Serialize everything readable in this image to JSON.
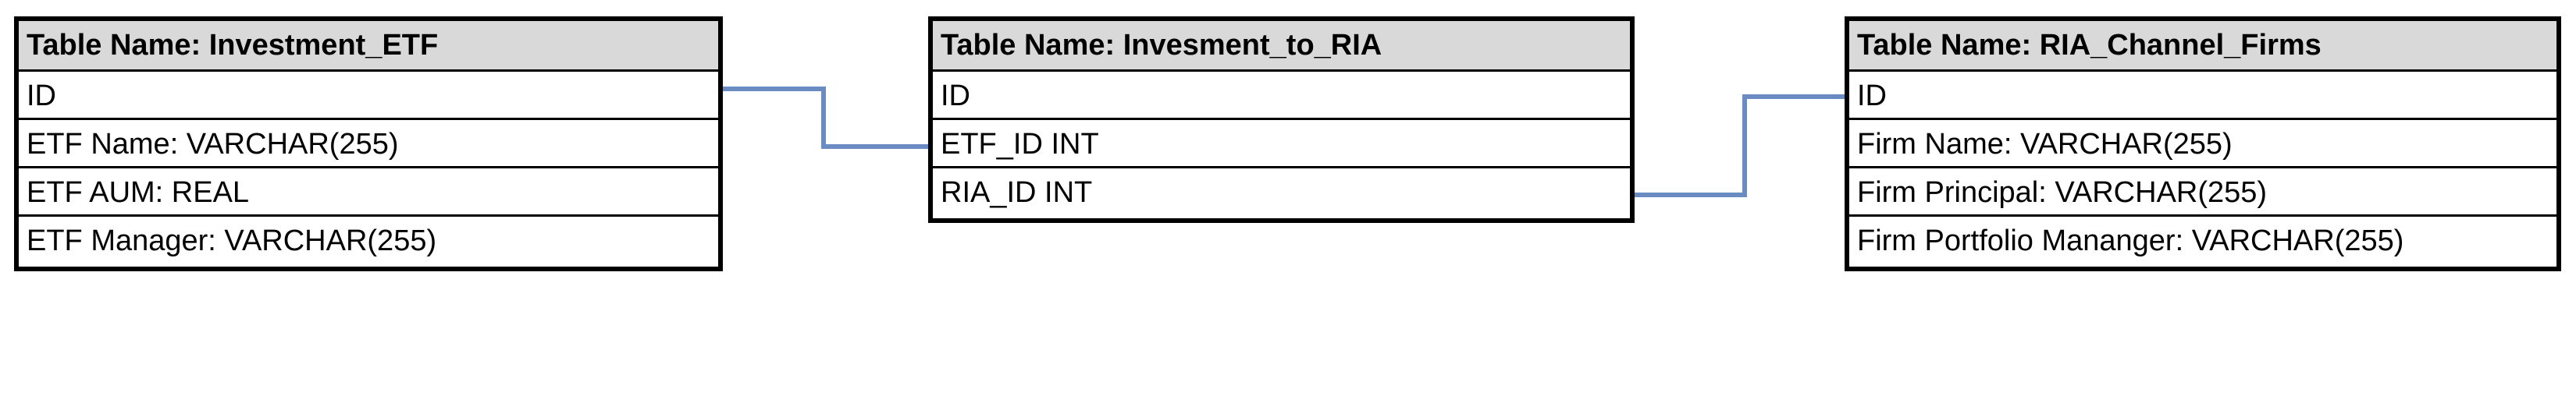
{
  "tables": [
    {
      "title": "Table Name: Investment_ETF",
      "rows": [
        "ID",
        "ETF Name: VARCHAR(255)",
        "ETF AUM: REAL",
        "ETF Manager: VARCHAR(255)"
      ]
    },
    {
      "title": "Table Name: Invesment_to_RIA",
      "rows": [
        "ID",
        "ETF_ID INT",
        "RIA_ID INT"
      ]
    },
    {
      "title": "Table Name: RIA_Channel_Firms",
      "rows": [
        "ID",
        "Firm Name: VARCHAR(255)",
        "Firm Principal: VARCHAR(255)",
        "Firm Portfolio Mananger: VARCHAR(255)"
      ]
    }
  ],
  "colors": {
    "connector": "#6b8cc2",
    "header_fill": "#d9d9d9",
    "border": "#000000"
  }
}
